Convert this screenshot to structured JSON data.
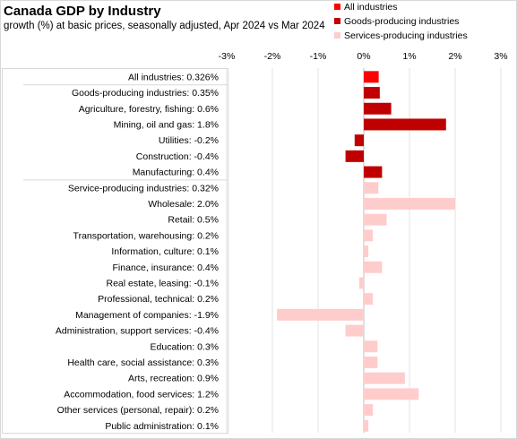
{
  "chart_data": {
    "type": "bar",
    "orientation": "horizontal",
    "title": "Canada GDP by Industry",
    "subtitle": "growth (%) at basic prices, seasonally  adjusted, Apr 2024 vs Mar 2024",
    "xlim": [
      -3,
      3
    ],
    "x_ticks": [
      "-3%",
      "-2%",
      "-1%",
      "0%",
      "1%",
      "2%",
      "3%"
    ],
    "grid": "vertical",
    "legend_position": "top-right",
    "legend": [
      {
        "name": "All industries",
        "color": "#ff0000"
      },
      {
        "name": "Goods-producing industries",
        "color": "#c00000"
      },
      {
        "name": "Services-producing industries",
        "color": "#ffcccc"
      }
    ],
    "categories": [
      {
        "label": "All industries: 0.326%",
        "value": 0.326,
        "group": 0
      },
      {
        "label": "Goods-producing industries: 0.35%",
        "value": 0.35,
        "group": 1
      },
      {
        "label": "Agriculture, forestry, fishing: 0.6%",
        "value": 0.6,
        "group": 1
      },
      {
        "label": "Mining, oil and gas: 1.8%",
        "value": 1.8,
        "group": 1
      },
      {
        "label": "Utilities: -0.2%",
        "value": -0.2,
        "group": 1
      },
      {
        "label": "Construction: -0.4%",
        "value": -0.4,
        "group": 1
      },
      {
        "label": "Manufacturing: 0.4%",
        "value": 0.4,
        "group": 1
      },
      {
        "label": "Service-producing industries: 0.32%",
        "value": 0.32,
        "group": 2
      },
      {
        "label": "Wholesale: 2.0%",
        "value": 2.0,
        "group": 2
      },
      {
        "label": "Retail: 0.5%",
        "value": 0.5,
        "group": 2
      },
      {
        "label": "Transportation, warehousing: 0.2%",
        "value": 0.2,
        "group": 2
      },
      {
        "label": "Information, culture: 0.1%",
        "value": 0.1,
        "group": 2
      },
      {
        "label": "Finance, insurance: 0.4%",
        "value": 0.4,
        "group": 2
      },
      {
        "label": "Real estate, leasing: -0.1%",
        "value": -0.1,
        "group": 2
      },
      {
        "label": "Professional, technical: 0.2%",
        "value": 0.2,
        "group": 2
      },
      {
        "label": "Management of companies: -1.9%",
        "value": -1.9,
        "group": 2
      },
      {
        "label": "Administration, support services: -0.4%",
        "value": -0.4,
        "group": 2
      },
      {
        "label": "Education: 0.3%",
        "value": 0.3,
        "group": 2
      },
      {
        "label": "Health care, social assistance: 0.3%",
        "value": 0.3,
        "group": 2
      },
      {
        "label": "Arts, recreation: 0.9%",
        "value": 0.9,
        "group": 2
      },
      {
        "label": "Accommodation, food services: 1.2%",
        "value": 1.2,
        "group": 2
      },
      {
        "label": "Other services (personal, repair): 0.2%",
        "value": 0.2,
        "group": 2
      },
      {
        "label": "Public administration: 0.1%",
        "value": 0.1,
        "group": 2
      }
    ]
  }
}
